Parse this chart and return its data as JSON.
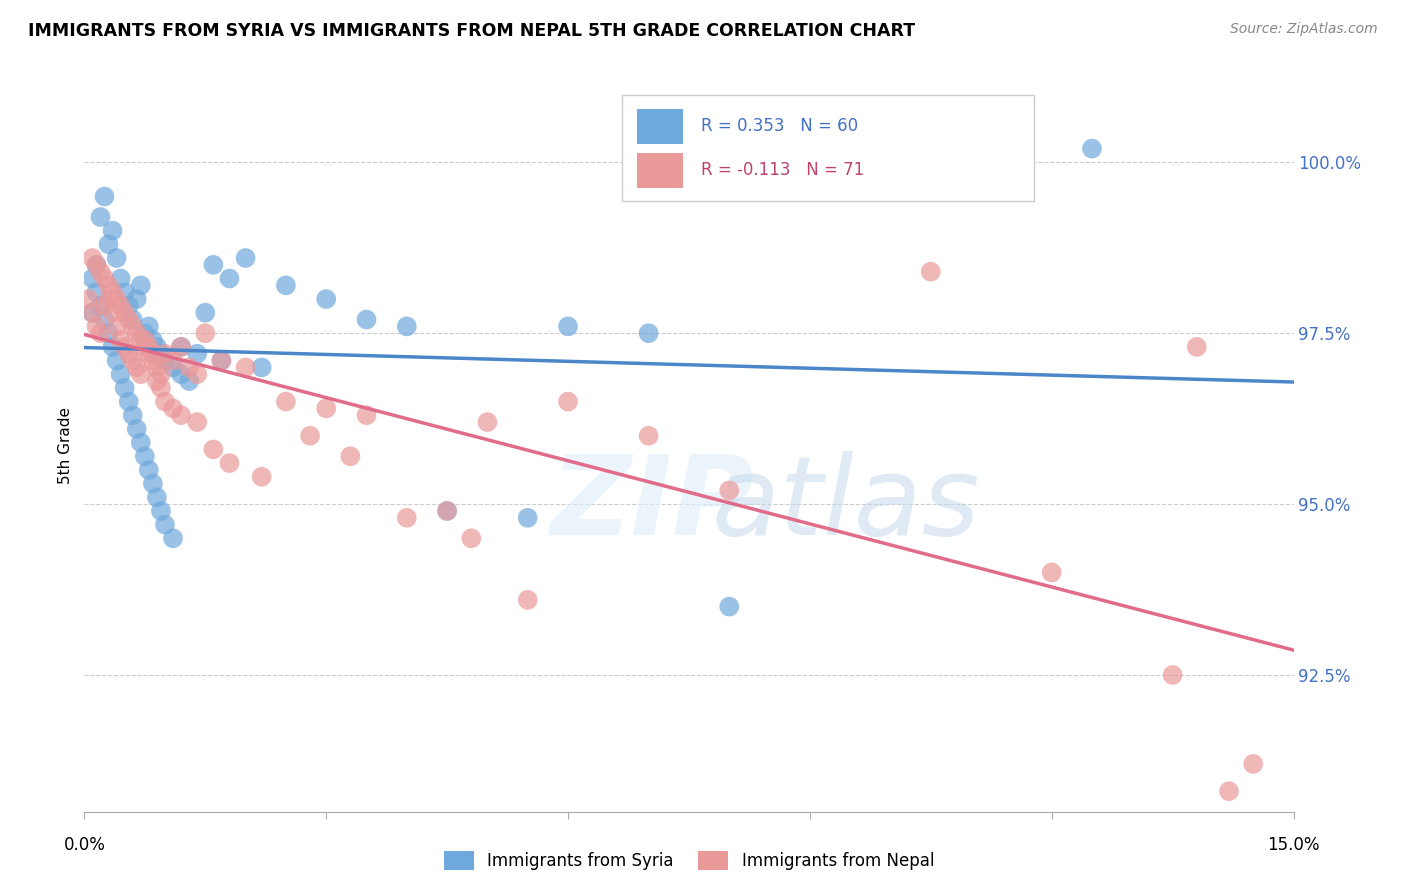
{
  "title": "IMMIGRANTS FROM SYRIA VS IMMIGRANTS FROM NEPAL 5TH GRADE CORRELATION CHART",
  "source": "Source: ZipAtlas.com",
  "ylabel": "5th Grade",
  "x_range": [
    0.0,
    15.0
  ],
  "y_range": [
    90.5,
    101.2
  ],
  "R_syria": 0.353,
  "N_syria": 60,
  "R_nepal": -0.113,
  "N_nepal": 71,
  "color_syria": "#6fa8dc",
  "color_nepal": "#ea9999",
  "line_color_syria": "#4a86c8",
  "line_color_nepal": "#e06c8a",
  "legend_label_syria": "Immigrants from Syria",
  "legend_label_nepal": "Immigrants from Nepal",
  "y_tick_vals": [
    92.5,
    95.0,
    97.5,
    100.0
  ],
  "syria_x": [
    0.1,
    0.15,
    0.2,
    0.25,
    0.3,
    0.35,
    0.4,
    0.45,
    0.5,
    0.55,
    0.6,
    0.65,
    0.7,
    0.75,
    0.8,
    0.85,
    0.9,
    0.95,
    1.0,
    1.1,
    1.2,
    1.3,
    1.5,
    1.6,
    1.8,
    2.0,
    2.5,
    3.0,
    3.5,
    4.0,
    4.5,
    5.5,
    6.0,
    7.0,
    8.0,
    12.5,
    0.1,
    0.15,
    0.2,
    0.25,
    0.3,
    0.35,
    0.4,
    0.45,
    0.5,
    0.55,
    0.6,
    0.65,
    0.7,
    0.75,
    0.8,
    0.85,
    0.9,
    0.95,
    1.0,
    1.1,
    1.2,
    1.4,
    1.7,
    2.2
  ],
  "syria_y": [
    97.8,
    98.5,
    99.2,
    99.5,
    98.8,
    99.0,
    98.6,
    98.3,
    98.1,
    97.9,
    97.7,
    98.0,
    98.2,
    97.5,
    97.6,
    97.4,
    97.3,
    97.2,
    97.1,
    97.0,
    96.9,
    96.8,
    97.8,
    98.5,
    98.3,
    98.6,
    98.2,
    98.0,
    97.7,
    97.6,
    94.9,
    94.8,
    97.6,
    97.5,
    93.5,
    100.2,
    98.3,
    98.1,
    97.9,
    97.7,
    97.5,
    97.3,
    97.1,
    96.9,
    96.7,
    96.5,
    96.3,
    96.1,
    95.9,
    95.7,
    95.5,
    95.3,
    95.1,
    94.9,
    94.7,
    94.5,
    97.3,
    97.2,
    97.1,
    97.0
  ],
  "nepal_x": [
    0.05,
    0.1,
    0.15,
    0.2,
    0.25,
    0.3,
    0.35,
    0.4,
    0.45,
    0.5,
    0.55,
    0.6,
    0.65,
    0.7,
    0.75,
    0.8,
    0.85,
    0.9,
    0.95,
    1.0,
    1.1,
    1.2,
    1.3,
    1.4,
    1.5,
    1.7,
    2.0,
    2.5,
    3.0,
    3.5,
    4.5,
    5.0,
    7.0,
    10.5,
    0.1,
    0.15,
    0.2,
    0.25,
    0.3,
    0.35,
    0.4,
    0.45,
    0.5,
    0.55,
    0.6,
    0.65,
    0.7,
    0.75,
    0.8,
    0.85,
    0.9,
    0.95,
    1.0,
    1.1,
    1.2,
    1.4,
    1.6,
    1.8,
    2.2,
    2.8,
    3.3,
    4.0,
    4.8,
    5.5,
    6.0,
    8.0,
    12.0,
    13.5,
    13.8,
    14.2,
    14.5
  ],
  "nepal_y": [
    98.0,
    97.8,
    97.6,
    97.5,
    97.9,
    98.0,
    97.8,
    97.6,
    97.4,
    97.3,
    97.2,
    97.1,
    97.0,
    96.9,
    97.4,
    97.3,
    97.2,
    96.8,
    96.7,
    97.2,
    97.1,
    97.3,
    97.0,
    96.9,
    97.5,
    97.1,
    97.0,
    96.5,
    96.4,
    96.3,
    94.9,
    96.2,
    96.0,
    98.4,
    98.6,
    98.5,
    98.4,
    98.3,
    98.2,
    98.1,
    98.0,
    97.9,
    97.8,
    97.7,
    97.6,
    97.5,
    97.4,
    97.3,
    97.2,
    97.1,
    97.0,
    96.9,
    96.5,
    96.4,
    96.3,
    96.2,
    95.8,
    95.6,
    95.4,
    96.0,
    95.7,
    94.8,
    94.5,
    93.6,
    96.5,
    95.2,
    94.0,
    92.5,
    97.3,
    90.8,
    91.2
  ]
}
